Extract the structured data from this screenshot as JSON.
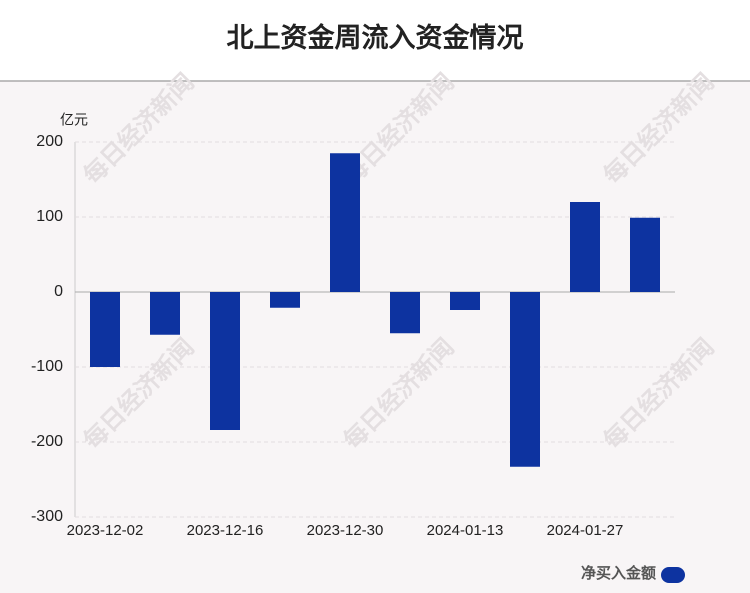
{
  "chart_data": {
    "type": "bar",
    "title": "北上资金周流入资金情况",
    "y_unit": "亿元",
    "watermark": "每日经济新闻",
    "categories": [
      "2023-12-02",
      null,
      "2023-12-16",
      null,
      "2023-12-30",
      null,
      "2024-01-13",
      null,
      "2024-01-27",
      null
    ],
    "series": [
      {
        "name": "净买入金额",
        "color": "#0d33a0",
        "values": [
          -100,
          -57,
          -184,
          -21,
          185,
          -55,
          -24,
          -233,
          120,
          99
        ]
      }
    ],
    "ylim": [
      -300,
      200
    ],
    "yticks": [
      -300,
      -200,
      -100,
      0,
      100,
      200
    ],
    "grid": true,
    "legend": "bottom-right"
  }
}
